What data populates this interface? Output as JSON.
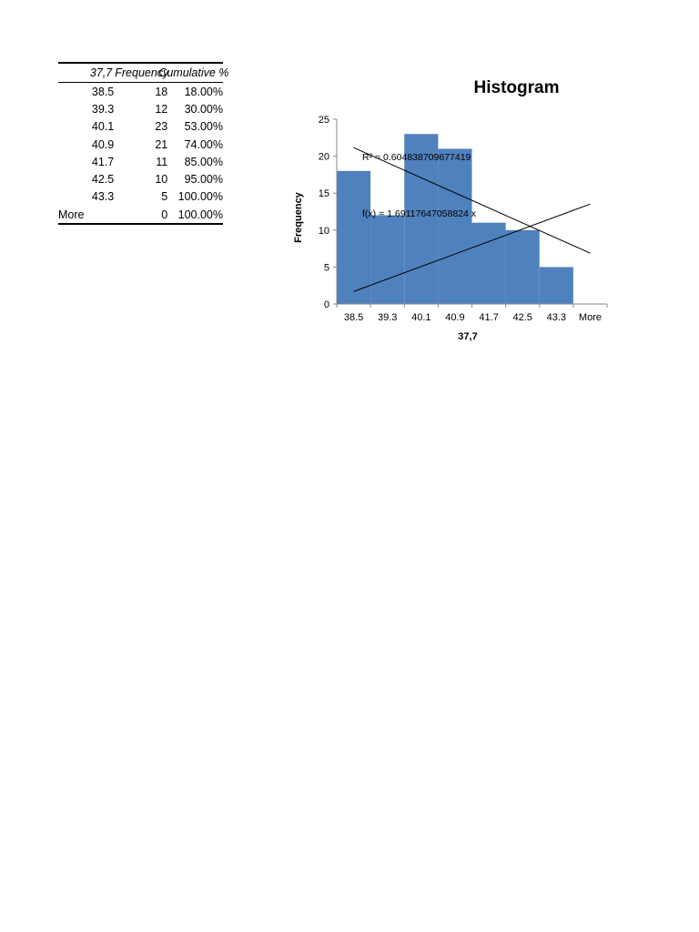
{
  "table": {
    "headers": [
      "37,7",
      "Frequency",
      "Cumulative %"
    ],
    "rows": [
      [
        "38.5",
        "18",
        "18.00%"
      ],
      [
        "39.3",
        "12",
        "30.00%"
      ],
      [
        "40.1",
        "23",
        "53.00%"
      ],
      [
        "40.9",
        "21",
        "74.00%"
      ],
      [
        "41.7",
        "11",
        "85.00%"
      ],
      [
        "42.5",
        "10",
        "95.00%"
      ],
      [
        "43.3",
        "5",
        "100.00%"
      ],
      [
        "More",
        "0",
        "100.00%"
      ]
    ]
  },
  "chart_data": {
    "type": "bar",
    "title": "Histogram",
    "xlabel": "37,7",
    "ylabel": "Frequency",
    "categories": [
      "38.5",
      "39.3",
      "40.1",
      "40.9",
      "41.7",
      "42.5",
      "43.3",
      "More"
    ],
    "values": [
      18,
      12,
      23,
      21,
      11,
      10,
      5,
      0
    ],
    "ylim": [
      0,
      25
    ],
    "yticks": [
      0,
      5,
      10,
      15,
      20,
      25
    ],
    "bar_color": "#4f81bd",
    "grid": false,
    "legend": "none",
    "annotations": [
      "R² = 0.604838709677419",
      "f(x) = 1.69117647058824 x"
    ],
    "trendlines": [
      {
        "type": "linear",
        "slope": -2.04,
        "intercept": 23.2
      },
      {
        "type": "linear",
        "slope": 1.69,
        "intercept": 0
      }
    ]
  }
}
